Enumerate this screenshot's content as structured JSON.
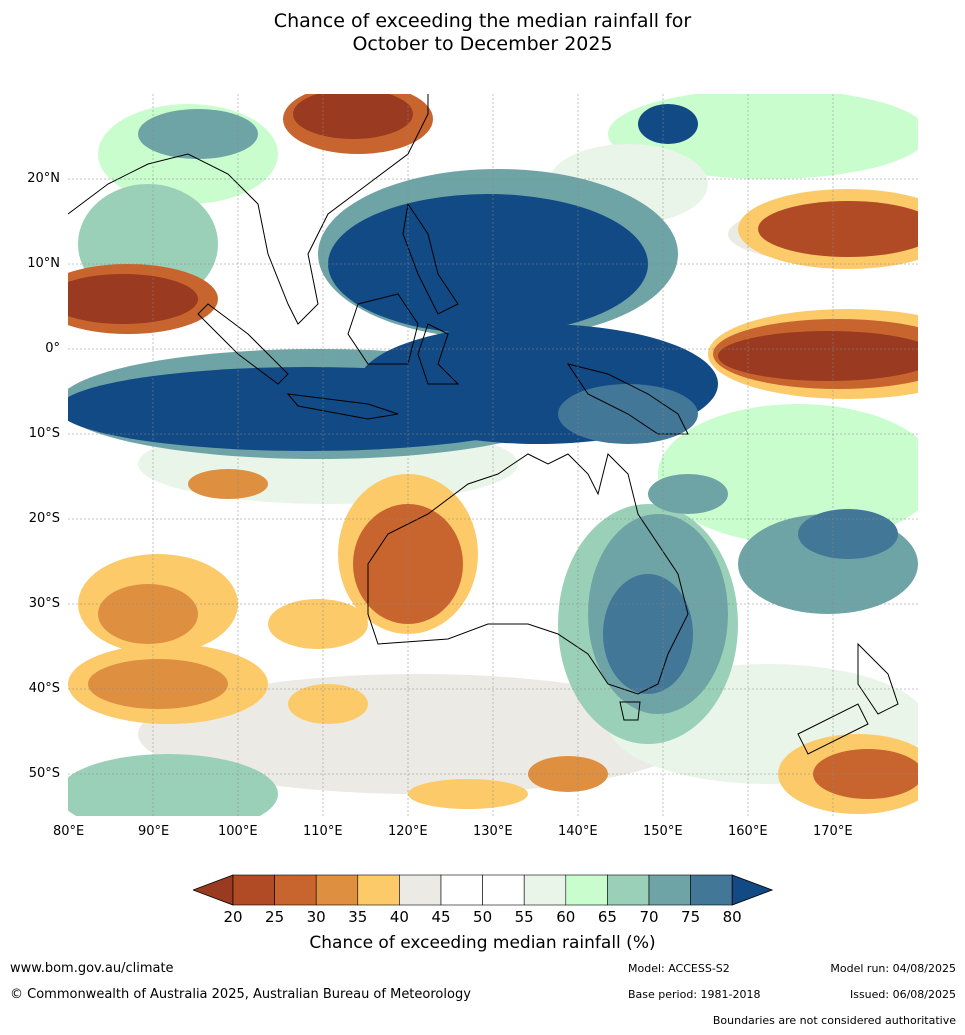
{
  "title": {
    "line1": "Chance of exceeding the median rainfall for",
    "line2": "October to December 2025"
  },
  "map": {
    "type": "choropleth-contour",
    "region": "Australia, Maritime Continent and surrounding oceans",
    "lon_range": [
      80,
      180
    ],
    "lat_range": [
      -55,
      30
    ],
    "lat_labels": [
      "20°N",
      "10°N",
      "0°",
      "10°S",
      "20°S",
      "30°S",
      "40°S",
      "50°S"
    ],
    "lon_labels": [
      "80°E",
      "90°E",
      "100°E",
      "110°E",
      "120°E",
      "130°E",
      "140°E",
      "150°E",
      "160°E",
      "170°E"
    ]
  },
  "legend": {
    "ticks": [
      "20",
      "25",
      "30",
      "35",
      "40",
      "45",
      "50",
      "55",
      "60",
      "65",
      "70",
      "75",
      "80"
    ],
    "colors": [
      "#9a3a20",
      "#b04b26",
      "#c8652f",
      "#de9040",
      "#fdca6a",
      "#eceae4",
      "#ffffff",
      "#ffffff",
      "#e9f5e8",
      "#c9fdcd",
      "#9bd0b8",
      "#6fa4a6",
      "#437798",
      "#124a86"
    ],
    "title": "Chance of exceeding median rainfall (%)"
  },
  "footer": {
    "website": "www.bom.gov.au/climate",
    "copyright": "© Commonwealth of Australia 2025, Australian Bureau of Meteorology",
    "model": "Model: ACCESS-S2",
    "base_period": "Base period: 1981-2018",
    "model_run": "Model run: 04/08/2025",
    "issued": "Issued: 06/08/2025",
    "disclaimer": "Boundaries are not considered authoritative"
  }
}
